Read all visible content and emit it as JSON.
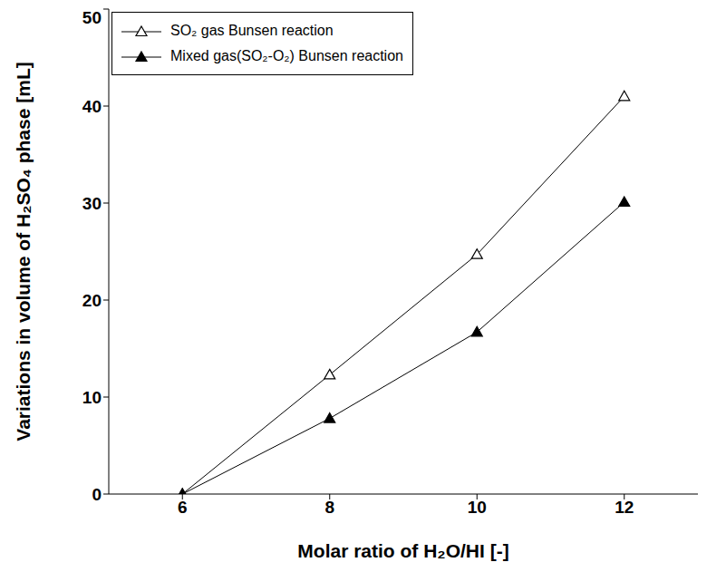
{
  "chart_data": {
    "type": "line",
    "x_label": "Molar ratio of H₂O/HI [-]",
    "y_label": "Variations in volume of H₂SO₄ phase [mL]",
    "x": [
      6,
      8,
      10,
      12
    ],
    "series": [
      {
        "name": "SO₂ gas Bunsen reaction",
        "color": "#000000",
        "marker": "triangle-open",
        "values": [
          0,
          12.3,
          24.7,
          41.0
        ]
      },
      {
        "name": "Mixed gas(SO₂-O₂) Bunsen reaction",
        "color": "#000000",
        "marker": "triangle",
        "values": [
          0,
          7.8,
          16.7,
          30.1
        ]
      }
    ],
    "xlim": [
      5,
      13
    ],
    "xticks": [
      6,
      8,
      10,
      12
    ],
    "ylim": [
      0,
      50
    ],
    "yticks": [
      0,
      10,
      20,
      30,
      40,
      50
    ],
    "grid": false,
    "legend": "upper left"
  }
}
